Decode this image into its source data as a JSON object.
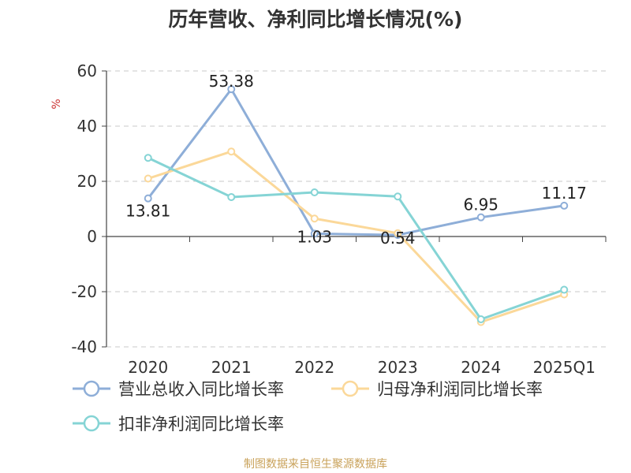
{
  "chart_data": {
    "type": "line",
    "title": "历年营收、净利同比增长情况(%)",
    "ylabel": "%",
    "categories": [
      "2020",
      "2021",
      "2022",
      "2023",
      "2024",
      "2025Q1"
    ],
    "ylim": [
      -40,
      60
    ],
    "yticks": [
      60,
      40,
      20,
      0,
      -20,
      -40
    ],
    "grid": true,
    "legend_position": "bottom-left",
    "series": [
      {
        "name": "营业总收入同比增长率",
        "values": [
          13.81,
          53.38,
          1.03,
          0.54,
          6.95,
          11.17
        ],
        "labels": [
          "13.81",
          "53.38",
          "1.03",
          "0.54",
          "6.95",
          "11.17"
        ],
        "color": "#8eaed8"
      },
      {
        "name": "归母净利润同比增长率",
        "values": [
          21.0,
          30.8,
          6.5,
          1.2,
          -31.0,
          -21.0
        ],
        "color": "#fbd899"
      },
      {
        "name": "扣非净利润同比增长率",
        "values": [
          28.5,
          14.3,
          16.0,
          14.5,
          -30.0,
          -19.3
        ],
        "color": "#85d4d5"
      }
    ]
  },
  "source": {
    "text": "制图数据来自恒生聚源数据库",
    "color": "#c9a25a"
  },
  "unit_color": "#cc3333"
}
